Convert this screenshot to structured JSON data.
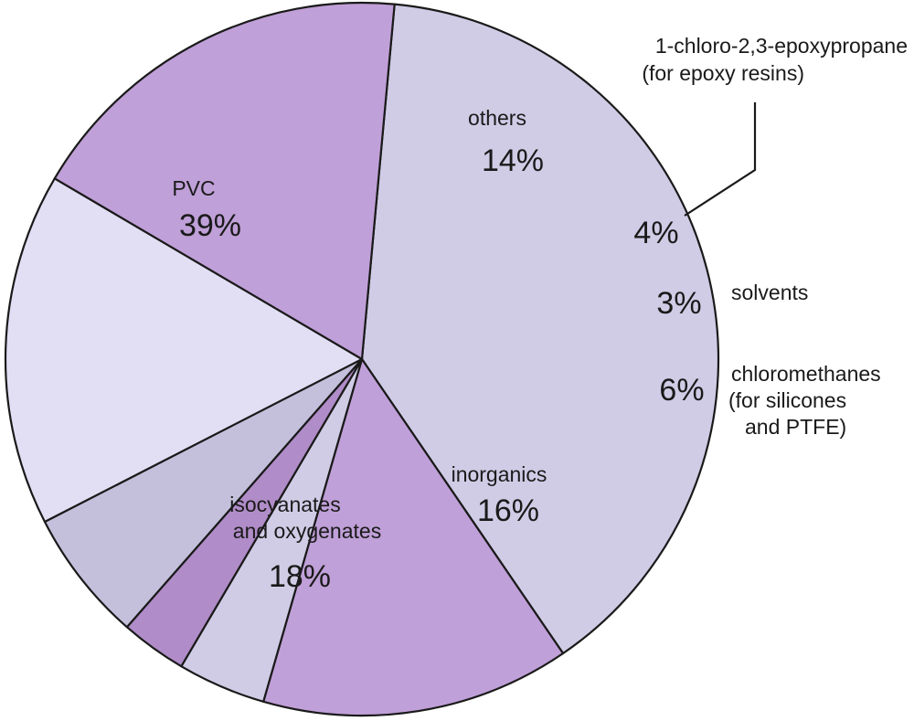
{
  "chart_data": {
    "type": "pie",
    "start_angle_deg": 84.75,
    "direction": "clockwise",
    "slices": [
      {
        "label": "PVC",
        "value": 39,
        "value_label": "39%",
        "color": "#d0cce6"
      },
      {
        "label": "others",
        "value": 14,
        "value_label": "14%",
        "color": "#c0a0d8"
      },
      {
        "label": "1-chloro-2,3-epoxypropane (for epoxy resins)",
        "value": 4,
        "value_label": "4%",
        "color": "#d0cce6"
      },
      {
        "label": "solvents",
        "value": 3,
        "value_label": "3%",
        "color": "#b08cc8"
      },
      {
        "label": "chloromethanes (for silicones and PTFE)",
        "value": 6,
        "value_label": "6%",
        "color": "#c4c0dc"
      },
      {
        "label": "inorganics",
        "value": 16,
        "value_label": "16%",
        "color": "#e2def4"
      },
      {
        "label": "isocyanates and oxygenates",
        "value": 18,
        "value_label": "18%",
        "color": "#c0a0d8"
      }
    ],
    "labels": {
      "pvc": {
        "name": "PVC",
        "pct": "39%"
      },
      "others": {
        "name": "others",
        "pct": "14%"
      },
      "epoxy": {
        "line1": "1-chloro-2,3-epoxypropane",
        "line2": "(for epoxy resins)",
        "pct": "4%"
      },
      "solvents": {
        "name": "solvents",
        "pct": "3%"
      },
      "chloromethanes": {
        "line1": "chloromethanes",
        "line2": "(for silicones",
        "line3": "and PTFE)",
        "pct": "6%"
      },
      "inorganics": {
        "name": "inorganics",
        "pct": "16%"
      },
      "isocyanates": {
        "line1": "isocyanates",
        "line2": "and oxygenates",
        "pct": "18%"
      }
    }
  }
}
